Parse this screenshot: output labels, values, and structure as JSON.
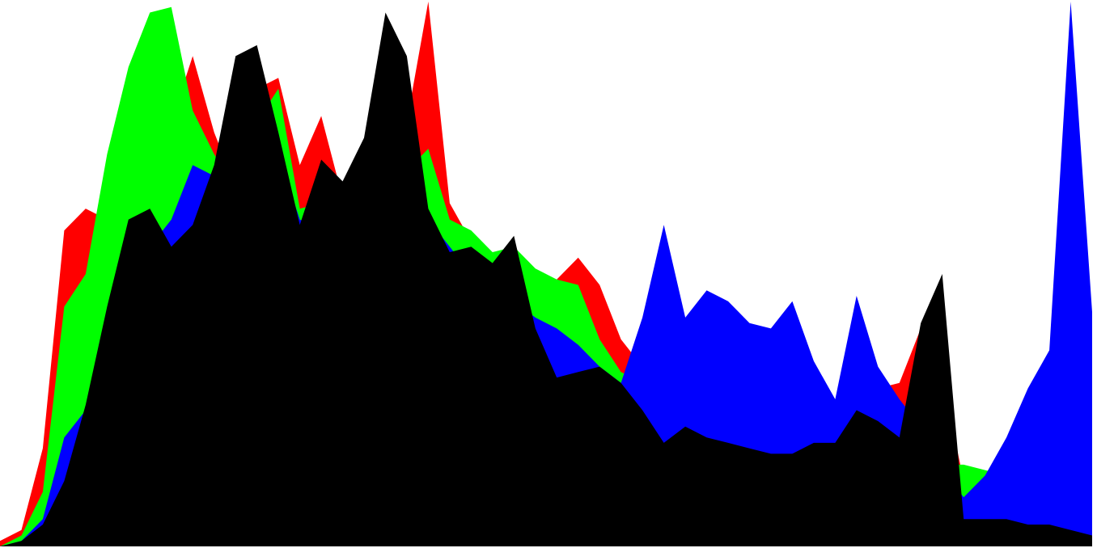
{
  "chart_data": {
    "type": "area",
    "title": "",
    "xlabel": "",
    "ylabel": "",
    "xlim": [
      0,
      255
    ],
    "ylim": [
      0,
      1
    ],
    "grid": false,
    "legend": "none",
    "colors": {
      "red": "#ff0000",
      "green": "#00ff00",
      "blue": "#0000ff",
      "black": "#000000",
      "background": "#ffffff"
    },
    "x": [
      0,
      5,
      10,
      15,
      20,
      25,
      30,
      35,
      40,
      45,
      50,
      55,
      60,
      65,
      70,
      75,
      80,
      85,
      90,
      95,
      100,
      105,
      110,
      115,
      120,
      125,
      130,
      135,
      140,
      145,
      150,
      155,
      160,
      165,
      170,
      175,
      180,
      185,
      190,
      195,
      200,
      205,
      210,
      215,
      220,
      225,
      230,
      235,
      240,
      245,
      250,
      255
    ],
    "series": [
      {
        "color": "#ff0000",
        "values": [
          0.01,
          0.03,
          0.18,
          0.58,
          0.62,
          0.6,
          0.7,
          0.86,
          0.78,
          0.9,
          0.76,
          0.66,
          0.84,
          0.86,
          0.7,
          0.79,
          0.64,
          0.7,
          0.68,
          0.78,
          1.0,
          0.63,
          0.56,
          0.54,
          0.53,
          0.5,
          0.49,
          0.53,
          0.48,
          0.38,
          0.33,
          0.22,
          0.24,
          0.25,
          0.23,
          0.22,
          0.2,
          0.25,
          0.21,
          0.19,
          0.26,
          0.29,
          0.3,
          0.4,
          0.31,
          0.12,
          0.05,
          0.04,
          0.04,
          0.04,
          0.02,
          0.02
        ]
      },
      {
        "color": "#00ff00",
        "values": [
          0.0,
          0.02,
          0.1,
          0.44,
          0.5,
          0.72,
          0.88,
          0.98,
          0.99,
          0.8,
          0.72,
          0.66,
          0.78,
          0.84,
          0.62,
          0.63,
          0.62,
          0.58,
          0.56,
          0.69,
          0.73,
          0.6,
          0.58,
          0.54,
          0.55,
          0.51,
          0.49,
          0.48,
          0.38,
          0.32,
          0.3,
          0.22,
          0.24,
          0.22,
          0.21,
          0.22,
          0.2,
          0.25,
          0.21,
          0.19,
          0.23,
          0.26,
          0.21,
          0.18,
          0.15,
          0.15,
          0.14,
          0.13,
          0.15,
          0.18,
          0.37,
          0.16
        ]
      },
      {
        "color": "#0000ff",
        "values": [
          0.0,
          0.01,
          0.05,
          0.2,
          0.25,
          0.3,
          0.4,
          0.55,
          0.6,
          0.7,
          0.68,
          0.62,
          0.65,
          0.72,
          0.6,
          0.58,
          0.55,
          0.52,
          0.48,
          0.55,
          0.6,
          0.55,
          0.5,
          0.47,
          0.45,
          0.42,
          0.4,
          0.37,
          0.33,
          0.3,
          0.42,
          0.59,
          0.42,
          0.47,
          0.45,
          0.41,
          0.4,
          0.45,
          0.34,
          0.27,
          0.46,
          0.33,
          0.27,
          0.22,
          0.14,
          0.09,
          0.13,
          0.2,
          0.29,
          0.36,
          1.0,
          0.43
        ]
      },
      {
        "color": "#000000",
        "values": [
          0.0,
          0.01,
          0.04,
          0.12,
          0.26,
          0.44,
          0.6,
          0.62,
          0.55,
          0.59,
          0.7,
          0.9,
          0.92,
          0.76,
          0.59,
          0.71,
          0.67,
          0.75,
          0.98,
          0.9,
          0.62,
          0.54,
          0.55,
          0.52,
          0.57,
          0.4,
          0.31,
          0.32,
          0.33,
          0.3,
          0.25,
          0.19,
          0.22,
          0.2,
          0.19,
          0.18,
          0.17,
          0.17,
          0.19,
          0.19,
          0.25,
          0.23,
          0.2,
          0.41,
          0.5,
          0.05,
          0.05,
          0.05,
          0.04,
          0.04,
          0.03,
          0.02
        ]
      }
    ]
  }
}
